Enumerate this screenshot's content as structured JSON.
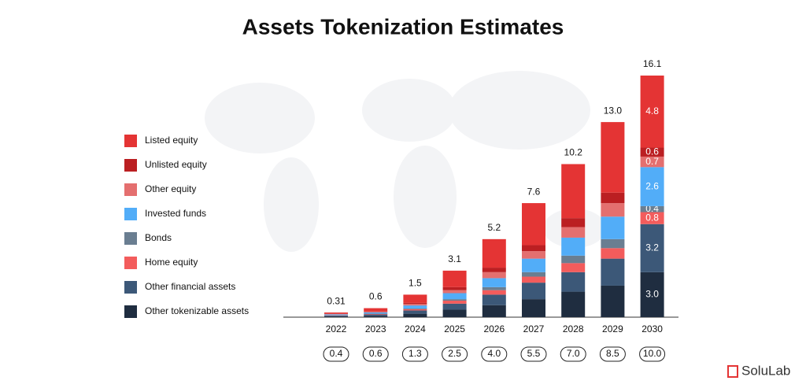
{
  "chart_data": {
    "type": "stacked_bar",
    "title": "Assets Tokenization Estimates",
    "categories": [
      "2022",
      "2023",
      "2024",
      "2025",
      "2026",
      "2027",
      "2028",
      "2029",
      "2030"
    ],
    "series": [
      {
        "name": "Listed equity",
        "color": "#e43434",
        "values": [
          0.09,
          0.22,
          0.55,
          1.1,
          1.9,
          2.8,
          3.6,
          4.7,
          4.8
        ],
        "value_labels": [
          null,
          null,
          null,
          null,
          null,
          null,
          null,
          null,
          "4.8"
        ]
      },
      {
        "name": "Unlisted equity",
        "color": "#bb1f22",
        "values": [
          0.01,
          0.03,
          0.07,
          0.2,
          0.3,
          0.4,
          0.6,
          0.7,
          0.6
        ],
        "value_labels": [
          null,
          null,
          null,
          null,
          null,
          null,
          null,
          null,
          "0.6"
        ]
      },
      {
        "name": "Other equity",
        "color": "#e46f6f",
        "values": [
          0.02,
          0.03,
          0.1,
          0.2,
          0.4,
          0.5,
          0.7,
          0.9,
          0.7
        ],
        "value_labels": [
          null,
          null,
          null,
          null,
          null,
          null,
          null,
          null,
          "0.7"
        ]
      },
      {
        "name": "Invested funds",
        "color": "#52adf8",
        "values": [
          0.05,
          0.08,
          0.2,
          0.4,
          0.6,
          0.9,
          1.2,
          1.5,
          2.6
        ],
        "value_labels": [
          null,
          null,
          null,
          null,
          null,
          null,
          null,
          null,
          "2.6"
        ]
      },
      {
        "name": "Bonds",
        "color": "#6a7e91",
        "values": [
          0.02,
          0.03,
          0.05,
          0.1,
          0.2,
          0.3,
          0.5,
          0.6,
          0.4
        ],
        "value_labels": [
          null,
          null,
          null,
          null,
          null,
          null,
          null,
          null,
          "0.4"
        ]
      },
      {
        "name": "Home equity",
        "color": "#f35c5c",
        "values": [
          0.02,
          0.03,
          0.08,
          0.2,
          0.3,
          0.4,
          0.6,
          0.7,
          0.8
        ],
        "value_labels": [
          null,
          null,
          null,
          null,
          null,
          null,
          null,
          null,
          "0.8"
        ]
      },
      {
        "name": "Other financial assets",
        "color": "#3c5878",
        "values": [
          0.05,
          0.09,
          0.22,
          0.4,
          0.7,
          1.1,
          1.3,
          1.8,
          3.2
        ],
        "value_labels": [
          null,
          null,
          null,
          null,
          null,
          null,
          null,
          null,
          "3.2"
        ]
      },
      {
        "name": "Other tokenizable assets",
        "color": "#1f2d40",
        "values": [
          0.05,
          0.09,
          0.23,
          0.5,
          0.8,
          1.2,
          1.7,
          2.1,
          3.0
        ],
        "value_labels": [
          null,
          null,
          null,
          null,
          null,
          null,
          null,
          null,
          "3.0"
        ]
      }
    ],
    "totals": [
      0.31,
      0.6,
      1.5,
      3.1,
      5.2,
      7.6,
      10.2,
      13.0,
      16.1
    ],
    "total_labels": [
      "0.31",
      "0.6",
      "1.5",
      "3.1",
      "5.2",
      "7.6",
      "10.2",
      "13.0",
      "16.1"
    ],
    "bottom_labels": [
      "0.4",
      "0.6",
      "1.3",
      "2.5",
      "4.0",
      "5.5",
      "7.0",
      "8.5",
      "10.0"
    ],
    "brand": "SoluLab"
  }
}
